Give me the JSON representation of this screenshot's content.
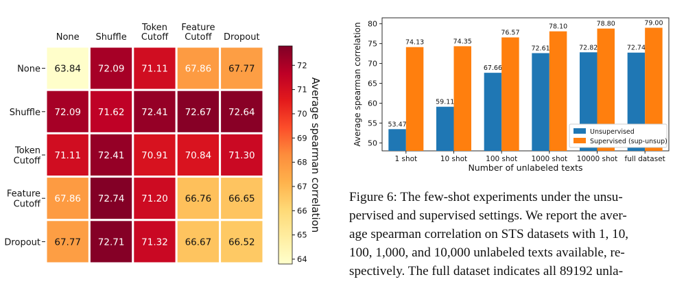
{
  "chart_data": [
    {
      "type": "heatmap",
      "title": "",
      "row_labels": [
        [
          "None"
        ],
        [
          "Shuffle"
        ],
        [
          "Token",
          "Cutoff"
        ],
        [
          "Feature",
          "Cutoff"
        ],
        [
          "Dropout"
        ]
      ],
      "col_labels": [
        [
          "None"
        ],
        [
          "Shuffle"
        ],
        [
          "Token",
          "Cutoff"
        ],
        [
          "Feature",
          "Cutoff"
        ],
        [
          "Dropout"
        ]
      ],
      "values": [
        [
          63.84,
          72.09,
          71.11,
          67.86,
          67.77
        ],
        [
          72.09,
          71.62,
          72.41,
          72.67,
          72.64
        ],
        [
          71.11,
          72.41,
          70.91,
          70.84,
          71.3
        ],
        [
          67.86,
          72.74,
          71.2,
          66.76,
          66.65
        ],
        [
          67.77,
          72.71,
          71.32,
          66.67,
          66.52
        ]
      ],
      "value_labels": [
        [
          "63.84",
          "72.09",
          "71.11",
          "67.86",
          "67.77"
        ],
        [
          "72.09",
          "71.62",
          "72.41",
          "72.67",
          "72.64"
        ],
        [
          "71.11",
          "72.41",
          "70.91",
          "70.84",
          "71.30"
        ],
        [
          "67.86",
          "72.74",
          "71.20",
          "66.76",
          "66.65"
        ],
        [
          "67.77",
          "72.71",
          "71.32",
          "66.67",
          "66.52"
        ]
      ],
      "colorbar": {
        "label": "Average spearman correlation",
        "range": [
          63.8,
          72.8
        ],
        "ticks": [
          "64",
          "65",
          "66",
          "67",
          "68",
          "69",
          "70",
          "71",
          "72"
        ],
        "colormap": "YlOrRd"
      }
    },
    {
      "type": "bar",
      "title": "",
      "categories": [
        "1 shot",
        "10 shot",
        "100 shot",
        "1000 shot",
        "10000 shot",
        "full dataset"
      ],
      "series": [
        {
          "name": "Unsupervised",
          "color": "#1f77b4",
          "values": [
            53.47,
            59.11,
            67.66,
            72.61,
            72.82,
            72.74
          ],
          "labels": [
            "53.47",
            "59.11",
            "67.66",
            "72.61",
            "72.82",
            "72.74"
          ]
        },
        {
          "name": "Supervised (sup-unsup)",
          "color": "#ff7f0e",
          "values": [
            74.13,
            74.35,
            76.57,
            78.1,
            78.8,
            79.0
          ],
          "labels": [
            "74.13",
            "74.35",
            "76.57",
            "78.10",
            "78.80",
            "79.00"
          ]
        }
      ],
      "xlabel": "Number of unlabeled texts",
      "ylabel": "Average spearman correlation",
      "ylim": [
        48,
        81.5
      ],
      "yticks": [
        50,
        55,
        60,
        65,
        70,
        75,
        80
      ],
      "ytick_labels": [
        "50",
        "55",
        "60",
        "65",
        "70",
        "75",
        "80"
      ],
      "legend_position": "bottom-right"
    }
  ],
  "caption": {
    "label": "Figure 6:",
    "lines": [
      "The few-shot experiments under the unsu-",
      "pervised and supervised settings.  We report the aver-",
      "age spearman correlation on STS datasets with 1, 10,",
      "100, 1,000, and 10,000 unlabeled texts available, re-",
      "spectively.  The full dataset indicates all 89192 unla-"
    ]
  }
}
